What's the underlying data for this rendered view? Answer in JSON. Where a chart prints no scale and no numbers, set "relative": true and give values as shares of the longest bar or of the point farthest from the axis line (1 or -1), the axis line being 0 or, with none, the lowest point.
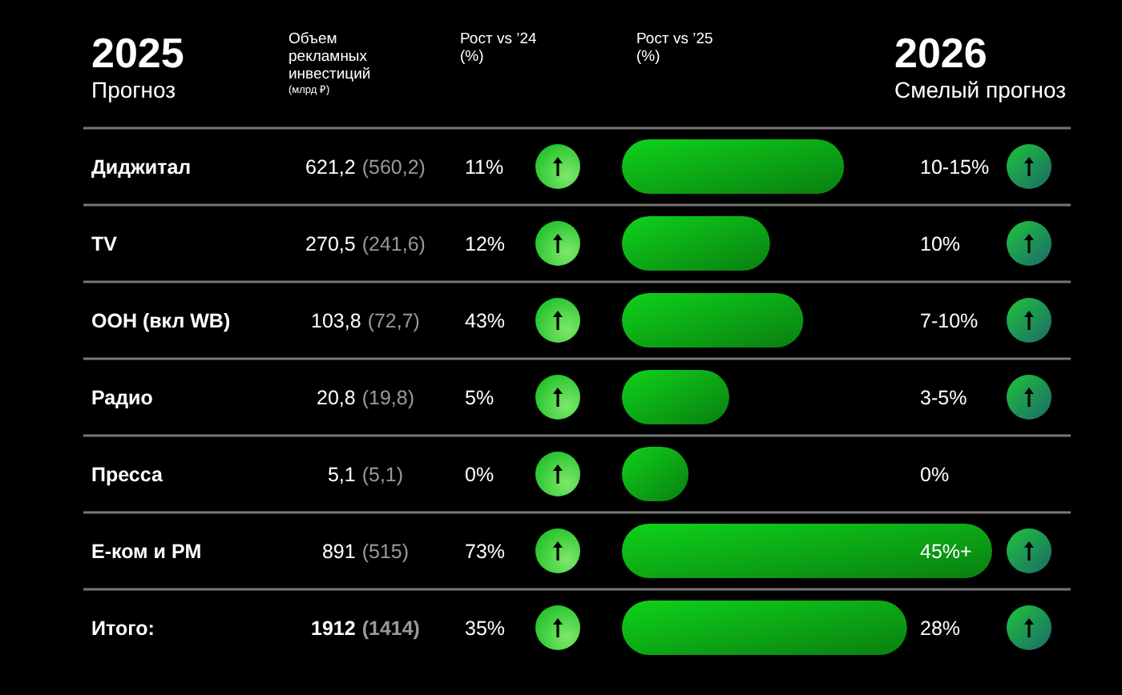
{
  "chart_data": {
    "type": "bar",
    "orientation": "horizontal",
    "relative": true,
    "title": "2025",
    "subtitle": "Прогноз",
    "categories": [
      "Диджитал",
      "TV",
      "OOH (вкл WB)",
      "Радио",
      "Пресса",
      "Е-ком и PM",
      "Итого"
    ],
    "values": [
      0.6,
      0.4,
      0.49,
      0.29,
      0.18,
      1,
      0.77
    ],
    "color": "#0fd21a",
    "annotations": [
      "Объем рекламных инвестиций",
      "(млрд ₽)",
      "Рост vs ’24 (%)",
      "Рост vs ’25 (%)",
      "2026",
      "Смелый прогноз",
      "621,2",
      "(560,2)",
      "11%",
      "10-15%",
      "270,5",
      "(241,6)",
      "12%",
      "10%",
      "103,8",
      "(72,7)",
      "43%",
      "7-10%",
      "20,8",
      "(19,8)",
      "5%",
      "3-5%",
      "5,1",
      "(5,1)",
      "0%",
      "0%",
      "891",
      "(515)",
      "73%",
      "45%+",
      "1912",
      "(1414)",
      "35%",
      "28%",
      ":"
    ]
  }
}
